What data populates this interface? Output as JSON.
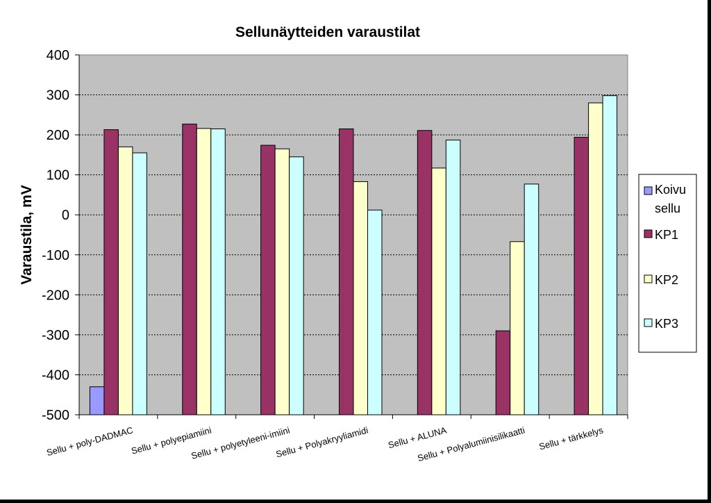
{
  "chart_data": {
    "type": "bar",
    "title": "Sellunäytteiden varaustilat",
    "ylabel": "Varaustila, mV",
    "xlabel": "",
    "ylim": [
      -500,
      400
    ],
    "yticks": [
      "400",
      "300",
      "200",
      "100",
      "0",
      "-100",
      "-200",
      "-300",
      "-400",
      "-500"
    ],
    "grid": true,
    "legend_position": "right",
    "categories": [
      "Sellu + poly-DADMAC",
      "Sellu + polyepiamiini",
      "Sellu + polyetyleeni-imiini",
      "Sellu + Polyakryyliamidi",
      "Sellu + ALUNA",
      "Sellu + Polyalumiinisilikaatti",
      "Sellu + tärkkelys"
    ],
    "series": [
      {
        "name": "Koivu sellu",
        "color": "#9999ff",
        "values": [
          -430,
          null,
          null,
          null,
          null,
          null,
          null
        ]
      },
      {
        "name": "KP1",
        "color": "#993366",
        "values": [
          213,
          227,
          174,
          215,
          211,
          -290,
          194
        ]
      },
      {
        "name": "KP2",
        "color": "#ffffcc",
        "values": [
          170,
          216,
          165,
          83,
          117,
          -67,
          280
        ]
      },
      {
        "name": "KP3",
        "color": "#ccffff",
        "values": [
          155,
          215,
          145,
          12,
          187,
          77,
          298
        ]
      }
    ],
    "legend_labels": {
      "koivu_line1": "Koivu",
      "koivu_line2": "sellu"
    },
    "plot_background": "#c0c0c0"
  }
}
